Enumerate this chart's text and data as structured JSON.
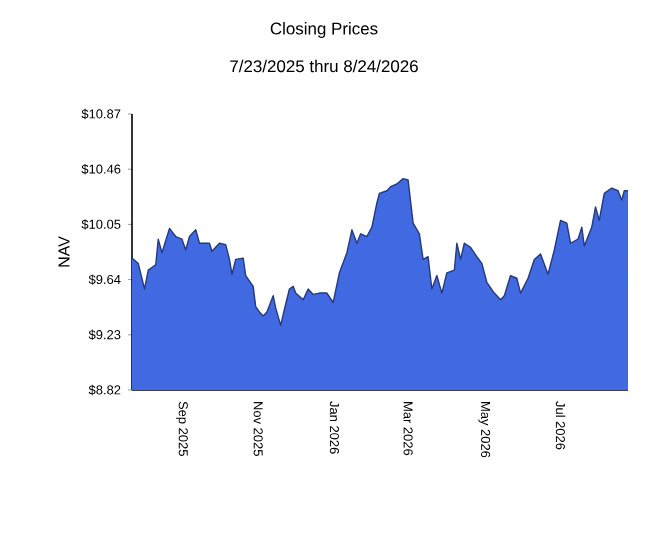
{
  "chart_data": {
    "type": "area",
    "title": "Closing Prices",
    "subtitle": "7/23/2025 thru 8/24/2026",
    "ylabel": "NAV",
    "x": [
      "2025-07-23",
      "2025-07-28",
      "2025-08-02",
      "2025-08-05",
      "2025-08-11",
      "2025-08-13",
      "2025-08-16",
      "2025-08-22",
      "2025-08-27",
      "2025-09-01",
      "2025-09-04",
      "2025-09-07",
      "2025-09-12",
      "2025-09-15",
      "2025-09-23",
      "2025-09-25",
      "2025-10-01",
      "2025-10-06",
      "2025-10-09",
      "2025-10-11",
      "2025-10-14",
      "2025-10-20",
      "2025-10-22",
      "2025-10-28",
      "2025-10-30",
      "2025-11-02",
      "2025-11-05",
      "2025-11-08",
      "2025-11-13",
      "2025-11-15",
      "2025-11-19",
      "2025-11-22",
      "2025-11-26",
      "2025-11-29",
      "2025-12-01",
      "2025-12-07",
      "2025-12-11",
      "2025-12-15",
      "2025-12-20",
      "2025-12-26",
      "2025-12-31",
      "2026-01-05",
      "2026-01-11",
      "2026-01-15",
      "2026-01-19",
      "2026-01-22",
      "2026-01-27",
      "2026-01-31",
      "2026-02-04",
      "2026-02-06",
      "2026-02-12",
      "2026-02-15",
      "2026-02-20",
      "2026-02-25",
      "2026-03-01",
      "2026-03-05",
      "2026-03-10",
      "2026-03-13",
      "2026-03-17",
      "2026-03-20",
      "2026-03-24",
      "2026-03-28",
      "2026-04-01",
      "2026-04-07",
      "2026-04-09",
      "2026-04-12",
      "2026-04-15",
      "2026-04-20",
      "2026-04-25",
      "2026-04-29",
      "2026-05-03",
      "2026-05-09",
      "2026-05-14",
      "2026-05-17",
      "2026-05-22",
      "2026-05-27",
      "2026-05-30",
      "2026-06-05",
      "2026-06-10",
      "2026-06-15",
      "2026-06-21",
      "2026-06-26",
      "2026-07-01",
      "2026-07-06",
      "2026-07-09",
      "2026-07-15",
      "2026-07-18",
      "2026-07-20",
      "2026-07-26",
      "2026-07-29",
      "2026-08-01",
      "2026-08-05",
      "2026-08-11",
      "2026-08-16",
      "2026-08-19",
      "2026-08-21",
      "2026-08-24"
    ],
    "values": [
      9.8,
      9.76,
      9.57,
      9.71,
      9.75,
      9.94,
      9.84,
      10.02,
      9.96,
      9.94,
      9.86,
      9.96,
      10.01,
      9.91,
      9.91,
      9.85,
      9.91,
      9.9,
      9.79,
      9.68,
      9.79,
      9.8,
      9.67,
      9.59,
      9.44,
      9.4,
      9.37,
      9.4,
      9.52,
      9.43,
      9.3,
      9.42,
      9.57,
      9.59,
      9.54,
      9.49,
      9.57,
      9.53,
      9.54,
      9.54,
      9.47,
      9.69,
      9.84,
      10.01,
      9.91,
      9.98,
      9.96,
      10.03,
      10.21,
      10.28,
      10.3,
      10.33,
      10.35,
      10.39,
      10.38,
      10.06,
      9.98,
      9.79,
      9.81,
      9.57,
      9.67,
      9.54,
      9.69,
      9.71,
      9.91,
      9.79,
      9.91,
      9.88,
      9.81,
      9.76,
      9.62,
      9.54,
      9.49,
      9.52,
      9.67,
      9.65,
      9.54,
      9.65,
      9.79,
      9.83,
      9.68,
      9.86,
      10.08,
      10.06,
      9.91,
      9.94,
      10.03,
      9.89,
      10.03,
      10.18,
      10.08,
      10.28,
      10.32,
      10.3,
      10.23,
      10.3,
      10.3
    ],
    "color": "#4169e1",
    "xlim": [
      "2025-07-23",
      "2026-08-24"
    ],
    "xticks": [
      {
        "value": "2025-09-01",
        "label": "Sep 2025"
      },
      {
        "value": "2025-11-01",
        "label": "Nov 2025"
      },
      {
        "value": "2026-01-01",
        "label": "Jan 2026"
      },
      {
        "value": "2026-03-01",
        "label": "Mar 2026"
      },
      {
        "value": "2026-05-01",
        "label": "May 2026"
      },
      {
        "value": "2026-07-01",
        "label": "Jul 2026"
      }
    ],
    "ylim": [
      8.82,
      10.87
    ],
    "yticks": [
      {
        "value": 8.82,
        "label": "$8.82"
      },
      {
        "value": 9.23,
        "label": "$9.23"
      },
      {
        "value": 9.64,
        "label": "$9.64"
      },
      {
        "value": 10.05,
        "label": "$10.05"
      },
      {
        "value": 10.46,
        "label": "$10.46"
      },
      {
        "value": 10.87,
        "label": "$10.87"
      }
    ],
    "line_style": "solid"
  }
}
